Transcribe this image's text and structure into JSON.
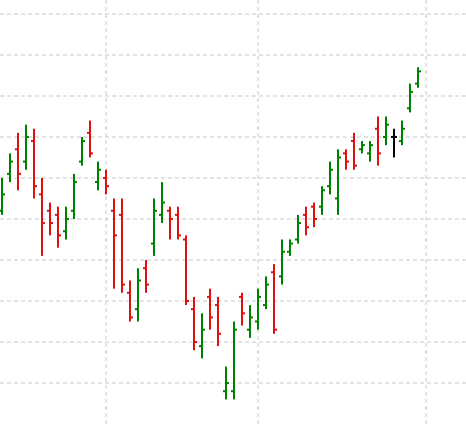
{
  "chart_data": {
    "type": "ohlc",
    "x": [
      0,
      1,
      2,
      3,
      4,
      5,
      6,
      7,
      8,
      9,
      10,
      11,
      12,
      13,
      14,
      15,
      16,
      17,
      18,
      19,
      20,
      21,
      22,
      23,
      24,
      25,
      26,
      27,
      28,
      29,
      30,
      31,
      32,
      33,
      34,
      35,
      36,
      37,
      38,
      39,
      40,
      41,
      42,
      43,
      44,
      45,
      46,
      47,
      48,
      49,
      50,
      51,
      52
    ],
    "open": [
      5.2,
      6.1,
      6.7,
      6.4,
      6.9,
      5.6,
      5.2,
      5.1,
      4.7,
      5.2,
      6.4,
      7.1,
      5.9,
      6.0,
      5.2,
      5.1,
      3.2,
      2.8,
      3.8,
      4.4,
      5.1,
      5.2,
      5.1,
      4.5,
      2.8,
      1.9,
      3.1,
      2.9,
      0.8,
      0.8,
      3.1,
      2.3,
      2.5,
      2.9,
      3.7,
      3.6,
      4.2,
      4.5,
      5.1,
      5.3,
      5.3,
      5.8,
      5.5,
      6.6,
      6.9,
      6.7,
      6.6,
      7.2,
      7.0,
      7.0,
      6.9,
      7.7,
      8.3
    ],
    "high": [
      6.0,
      6.6,
      7.1,
      7.3,
      7.2,
      6.0,
      5.4,
      5.3,
      5.3,
      6.1,
      7.0,
      7.4,
      6.4,
      6.2,
      5.5,
      5.5,
      3.5,
      3.8,
      4.0,
      5.5,
      5.9,
      5.3,
      5.3,
      4.6,
      3.1,
      2.7,
      3.3,
      3.1,
      1.4,
      2.5,
      3.2,
      2.9,
      3.3,
      3.6,
      3.9,
      4.5,
      4.5,
      5.1,
      5.3,
      5.4,
      5.8,
      6.4,
      6.7,
      6.7,
      7.1,
      6.9,
      6.9,
      7.5,
      7.5,
      7.2,
      7.4,
      8.3,
      8.7
    ],
    "low": [
      5.1,
      5.9,
      5.7,
      6.2,
      5.5,
      4.1,
      4.6,
      4.3,
      4.5,
      5.0,
      6.3,
      6.5,
      5.7,
      5.6,
      3.3,
      3.2,
      2.5,
      2.5,
      3.2,
      4.1,
      4.9,
      4.5,
      4.5,
      2.9,
      1.8,
      1.6,
      2.3,
      1.9,
      0.6,
      0.6,
      2.4,
      2.1,
      2.3,
      2.8,
      2.2,
      3.4,
      4.1,
      4.4,
      4.6,
      4.8,
      5.1,
      5.6,
      5.1,
      6.2,
      6.2,
      6.6,
      6.4,
      6.3,
      6.8,
      6.5,
      6.8,
      7.6,
      8.2
    ],
    "close": [
      5.6,
      6.4,
      6.1,
      7.0,
      5.8,
      4.9,
      4.9,
      4.6,
      5.0,
      5.9,
      6.9,
      6.6,
      6.2,
      5.8,
      4.6,
      3.4,
      2.6,
      3.5,
      3.4,
      5.2,
      5.4,
      5.0,
      4.6,
      3.0,
      2.0,
      2.3,
      2.6,
      2.2,
      1.0,
      2.3,
      2.7,
      2.6,
      3.1,
      3.4,
      2.3,
      4.2,
      4.4,
      4.9,
      4.8,
      5.0,
      5.7,
      6.2,
      6.5,
      6.4,
      6.3,
      6.8,
      6.8,
      6.6,
      7.3,
      7.0,
      7.2,
      8.1,
      8.6
    ],
    "up_color": "#008000",
    "down_color": "#dd1111",
    "flat_color": "#000000",
    "xlim": [
      -0.25,
      58
    ],
    "ylim": [
      0,
      10.34
    ],
    "xticks": [
      13,
      32,
      53
    ],
    "yticks": [
      1,
      2,
      3,
      4,
      5,
      6,
      7,
      8,
      9,
      10
    ],
    "grid": true
  }
}
